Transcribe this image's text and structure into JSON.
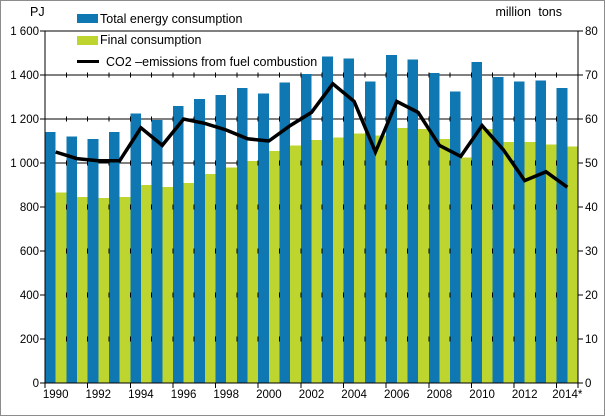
{
  "chart_data": {
    "type": "bar",
    "subtype": "combo-bar-line",
    "title": "",
    "left_axis": {
      "label": "PJ",
      "min": 0,
      "max": 1600,
      "tick_step": 200,
      "tick_labels": [
        "1 600",
        "1 400",
        "1 200",
        "1 000",
        "800",
        "600",
        "400",
        "200",
        "0"
      ]
    },
    "right_axis": {
      "label": "million tons",
      "min": 0,
      "max": 80,
      "tick_step": 10,
      "tick_labels": [
        "80",
        "70",
        "60",
        "50",
        "40",
        "30",
        "20",
        "10",
        "0"
      ]
    },
    "categories": [
      "1990",
      "1991",
      "1992",
      "1993",
      "1994",
      "1995",
      "1996",
      "1997",
      "1998",
      "1999",
      "2000",
      "2001",
      "2002",
      "2003",
      "2004",
      "2005",
      "2006",
      "2007",
      "2008",
      "2009",
      "2010",
      "2011",
      "2012",
      "2013",
      "2014*"
    ],
    "x_tick_labels": [
      "1990",
      "1992",
      "1994",
      "1996",
      "1998",
      "2000",
      "2002",
      "2004",
      "2006",
      "2008",
      "2010",
      "2012",
      "2014*"
    ],
    "grid": true,
    "legend_position": "top-left",
    "series": [
      {
        "name": "Total energy consumption",
        "type": "bar",
        "axis": "left",
        "color": "#0f77b2",
        "values": [
          1140,
          1120,
          1110,
          1140,
          1225,
          1195,
          1260,
          1290,
          1310,
          1340,
          1315,
          1365,
          1405,
          1485,
          1475,
          1370,
          1490,
          1470,
          1410,
          1325,
          1460,
          1390,
          1370,
          1375,
          1340
        ]
      },
      {
        "name": "Final consumption",
        "type": "bar",
        "axis": "left",
        "color": "#bdd52e",
        "values": [
          865,
          845,
          840,
          845,
          900,
          890,
          910,
          950,
          980,
          1010,
          1055,
          1080,
          1105,
          1115,
          1135,
          1125,
          1160,
          1155,
          1110,
          1025,
          1155,
          1095,
          1095,
          1085,
          1075
        ]
      },
      {
        "name": "CO2 –emissions from fuel combustion",
        "type": "line",
        "axis": "right",
        "color": "#000000",
        "values": [
          52.5,
          51,
          50.5,
          50.5,
          58,
          54,
          60,
          59,
          57.5,
          55.5,
          55,
          58.5,
          61.5,
          68,
          64,
          52.5,
          64,
          61.5,
          54,
          51.5,
          58.5,
          53,
          46,
          48,
          44.5
        ]
      }
    ]
  }
}
